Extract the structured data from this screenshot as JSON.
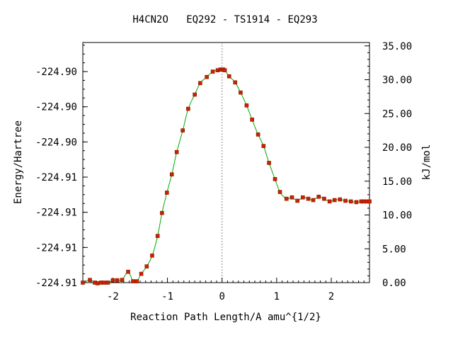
{
  "chart_data": {
    "type": "line",
    "title": "H4CN2O   EQ292 - TS1914 - EQ293",
    "xlabel": "Reaction Path Length/A amu^{1/2}",
    "ylabel": "Energy/Hartree",
    "y2label": "kJ/mol",
    "xlim": [
      -2.55,
      2.7
    ],
    "y2lim": [
      0,
      35.5
    ],
    "x_ticks": [
      -2,
      -1,
      0,
      1,
      2
    ],
    "x_tick_labels": [
      "-2",
      "-1",
      "0",
      "1",
      "2"
    ],
    "y_left_tick_positions_kjmol": [
      0,
      5.2,
      10.4,
      15.6,
      20.8,
      26.0,
      31.2
    ],
    "y_left_tick_labels": [
      "-224.91",
      "-224.91",
      "-224.91",
      "-224.91",
      "-224.90",
      "-224.90",
      "-224.90"
    ],
    "y_right_ticks": [
      0,
      5,
      10,
      15,
      20,
      25,
      30,
      35
    ],
    "y_right_tick_labels": [
      "0.00",
      "5.00",
      "10.00",
      "15.00",
      "20.00",
      "25.00",
      "30.00",
      "35.00"
    ],
    "ts_marker_x": 0,
    "series": [
      {
        "x": [
          -2.55,
          -2.42,
          -2.33,
          -2.28,
          -2.22,
          -2.16,
          -2.09,
          -2.0,
          -1.92,
          -1.83,
          -1.72,
          -1.63,
          -1.56,
          -1.48,
          -1.38,
          -1.28,
          -1.18,
          -1.1,
          -1.01,
          -0.92,
          -0.83,
          -0.72,
          -0.62,
          -0.5,
          -0.4,
          -0.28,
          -0.17,
          -0.08,
          -0.03,
          0.0,
          0.02,
          0.05,
          0.13,
          0.24,
          0.34,
          0.45,
          0.55,
          0.66,
          0.76,
          0.86,
          0.97,
          1.06,
          1.18,
          1.28,
          1.38,
          1.48,
          1.58,
          1.67,
          1.77,
          1.87,
          1.97,
          2.06,
          2.16,
          2.26,
          2.36,
          2.46,
          2.55,
          2.6,
          2.65,
          2.7
        ],
        "y": [
          0.0,
          0.4,
          0.0,
          -0.1,
          0.0,
          0.0,
          0.0,
          0.35,
          0.35,
          0.4,
          1.6,
          0.2,
          0.2,
          1.3,
          2.4,
          4.0,
          6.9,
          10.3,
          13.3,
          16.0,
          19.3,
          22.5,
          25.7,
          27.8,
          29.5,
          30.4,
          31.2,
          31.4,
          31.5,
          31.5,
          31.5,
          31.4,
          30.5,
          29.6,
          28.1,
          26.2,
          24.1,
          21.9,
          20.2,
          17.7,
          15.3,
          13.4,
          12.4,
          12.6,
          12.1,
          12.6,
          12.4,
          12.2,
          12.7,
          12.4,
          12.0,
          12.2,
          12.3,
          12.1,
          12.0,
          11.9,
          12.0,
          12.0,
          12.0,
          12.0
        ]
      }
    ]
  }
}
